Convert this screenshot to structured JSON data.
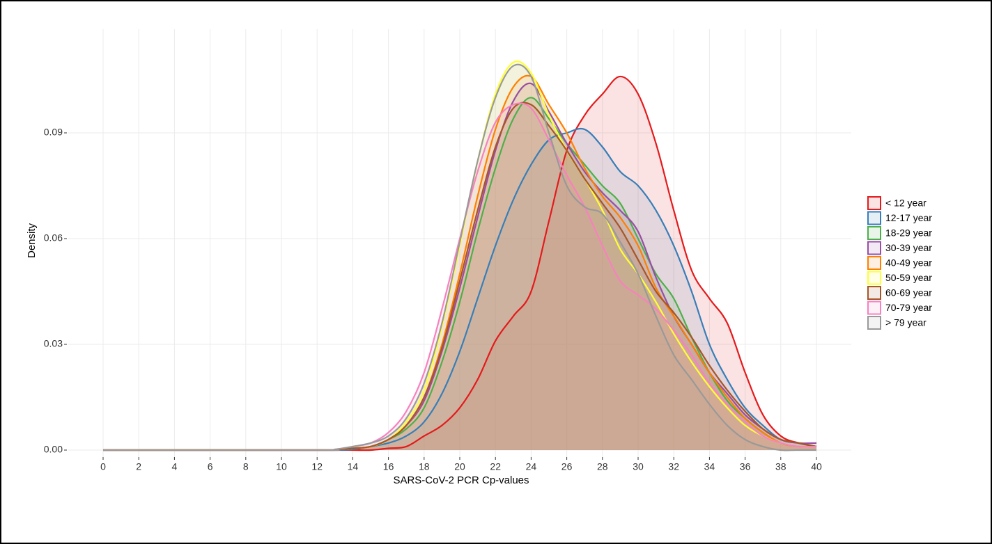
{
  "chart_data": {
    "type": "density",
    "x_label": "SARS-CoV-2 PCR Cp-values",
    "y_label": "Density",
    "x": [
      0,
      12,
      13,
      14,
      15,
      16,
      17,
      18,
      19,
      20,
      21,
      22,
      23,
      24,
      25,
      26,
      27,
      28,
      29,
      30,
      31,
      32,
      33,
      34,
      35,
      36,
      37,
      38,
      39,
      40
    ],
    "series": [
      {
        "name": "< 12 year",
        "color": "#e41a1c",
        "values": [
          0,
          0,
          0,
          0,
          0,
          0.0005,
          0.001,
          0.004,
          0.007,
          0.012,
          0.02,
          0.031,
          0.038,
          0.045,
          0.065,
          0.085,
          0.095,
          0.101,
          0.106,
          0.101,
          0.087,
          0.068,
          0.051,
          0.043,
          0.036,
          0.022,
          0.01,
          0.004,
          0.002,
          0.001
        ]
      },
      {
        "name": "12-17 year",
        "color": "#377eb8",
        "values": [
          0,
          0,
          0,
          0.0002,
          0.001,
          0.002,
          0.004,
          0.008,
          0.016,
          0.028,
          0.043,
          0.058,
          0.071,
          0.081,
          0.088,
          0.09,
          0.091,
          0.086,
          0.079,
          0.075,
          0.068,
          0.058,
          0.045,
          0.03,
          0.02,
          0.012,
          0.007,
          0.003,
          0.002,
          0.001
        ]
      },
      {
        "name": "18-29 year",
        "color": "#4daf4a",
        "values": [
          0,
          0,
          0.0001,
          0.0005,
          0.001,
          0.003,
          0.006,
          0.012,
          0.025,
          0.042,
          0.062,
          0.08,
          0.094,
          0.1,
          0.094,
          0.087,
          0.081,
          0.075,
          0.07,
          0.06,
          0.05,
          0.043,
          0.032,
          0.022,
          0.014,
          0.009,
          0.005,
          0.002,
          0.001,
          0.001
        ]
      },
      {
        "name": "30-39 year",
        "color": "#984ea3",
        "values": [
          0,
          0,
          0.0001,
          0.0005,
          0.001,
          0.003,
          0.007,
          0.014,
          0.028,
          0.046,
          0.066,
          0.085,
          0.099,
          0.104,
          0.096,
          0.087,
          0.079,
          0.073,
          0.068,
          0.062,
          0.049,
          0.038,
          0.03,
          0.022,
          0.016,
          0.01,
          0.006,
          0.003,
          0.002,
          0.002
        ]
      },
      {
        "name": "40-49 year",
        "color": "#ff7f00",
        "values": [
          0,
          0,
          0.0001,
          0.0005,
          0.001,
          0.003,
          0.007,
          0.015,
          0.03,
          0.05,
          0.072,
          0.091,
          0.103,
          0.106,
          0.098,
          0.09,
          0.08,
          0.072,
          0.066,
          0.058,
          0.046,
          0.038,
          0.03,
          0.022,
          0.015,
          0.009,
          0.005,
          0.002,
          0.001,
          0.001
        ]
      },
      {
        "name": "50-59 year",
        "color": "#ffff33",
        "values": [
          0,
          0,
          0.0001,
          0.0005,
          0.001,
          0.003,
          0.008,
          0.017,
          0.035,
          0.058,
          0.082,
          0.101,
          0.11,
          0.107,
          0.095,
          0.085,
          0.077,
          0.068,
          0.057,
          0.05,
          0.042,
          0.033,
          0.025,
          0.018,
          0.012,
          0.007,
          0.004,
          0.002,
          0.001,
          0.001
        ]
      },
      {
        "name": "60-69 year",
        "color": "#a65628",
        "values": [
          0,
          0,
          0.0001,
          0.0005,
          0.001,
          0.003,
          0.007,
          0.015,
          0.029,
          0.048,
          0.068,
          0.086,
          0.097,
          0.098,
          0.092,
          0.085,
          0.077,
          0.07,
          0.063,
          0.054,
          0.045,
          0.039,
          0.032,
          0.024,
          0.017,
          0.011,
          0.006,
          0.003,
          0.002,
          0.001
        ]
      },
      {
        "name": "70-79 year",
        "color": "#f781bf",
        "values": [
          0,
          0,
          0.0002,
          0.001,
          0.002,
          0.005,
          0.011,
          0.022,
          0.04,
          0.06,
          0.079,
          0.093,
          0.098,
          0.097,
          0.088,
          0.078,
          0.069,
          0.058,
          0.048,
          0.044,
          0.04,
          0.034,
          0.027,
          0.019,
          0.013,
          0.008,
          0.004,
          0.002,
          0.001,
          0.001
        ]
      },
      {
        "name": "> 79 year",
        "color": "#999999",
        "values": [
          0,
          0,
          0.0002,
          0.001,
          0.002,
          0.004,
          0.009,
          0.019,
          0.036,
          0.059,
          0.082,
          0.1,
          0.109,
          0.106,
          0.09,
          0.075,
          0.069,
          0.067,
          0.059,
          0.05,
          0.038,
          0.027,
          0.02,
          0.013,
          0.007,
          0.003,
          0.001,
          0,
          0,
          0
        ]
      }
    ],
    "xlim": [
      0,
      40
    ],
    "xticks": [
      0,
      2,
      4,
      6,
      8,
      10,
      12,
      14,
      16,
      18,
      20,
      22,
      24,
      26,
      28,
      30,
      32,
      34,
      36,
      38,
      40
    ],
    "ylim": [
      0,
      0.09
    ],
    "yticks": [
      {
        "value": 0,
        "label": "0.00"
      },
      {
        "value": 0.03,
        "label": "0.03"
      },
      {
        "value": 0.06,
        "label": "0.06"
      },
      {
        "value": 0.09,
        "label": "0.09"
      }
    ],
    "grid": true,
    "legend": "right"
  }
}
